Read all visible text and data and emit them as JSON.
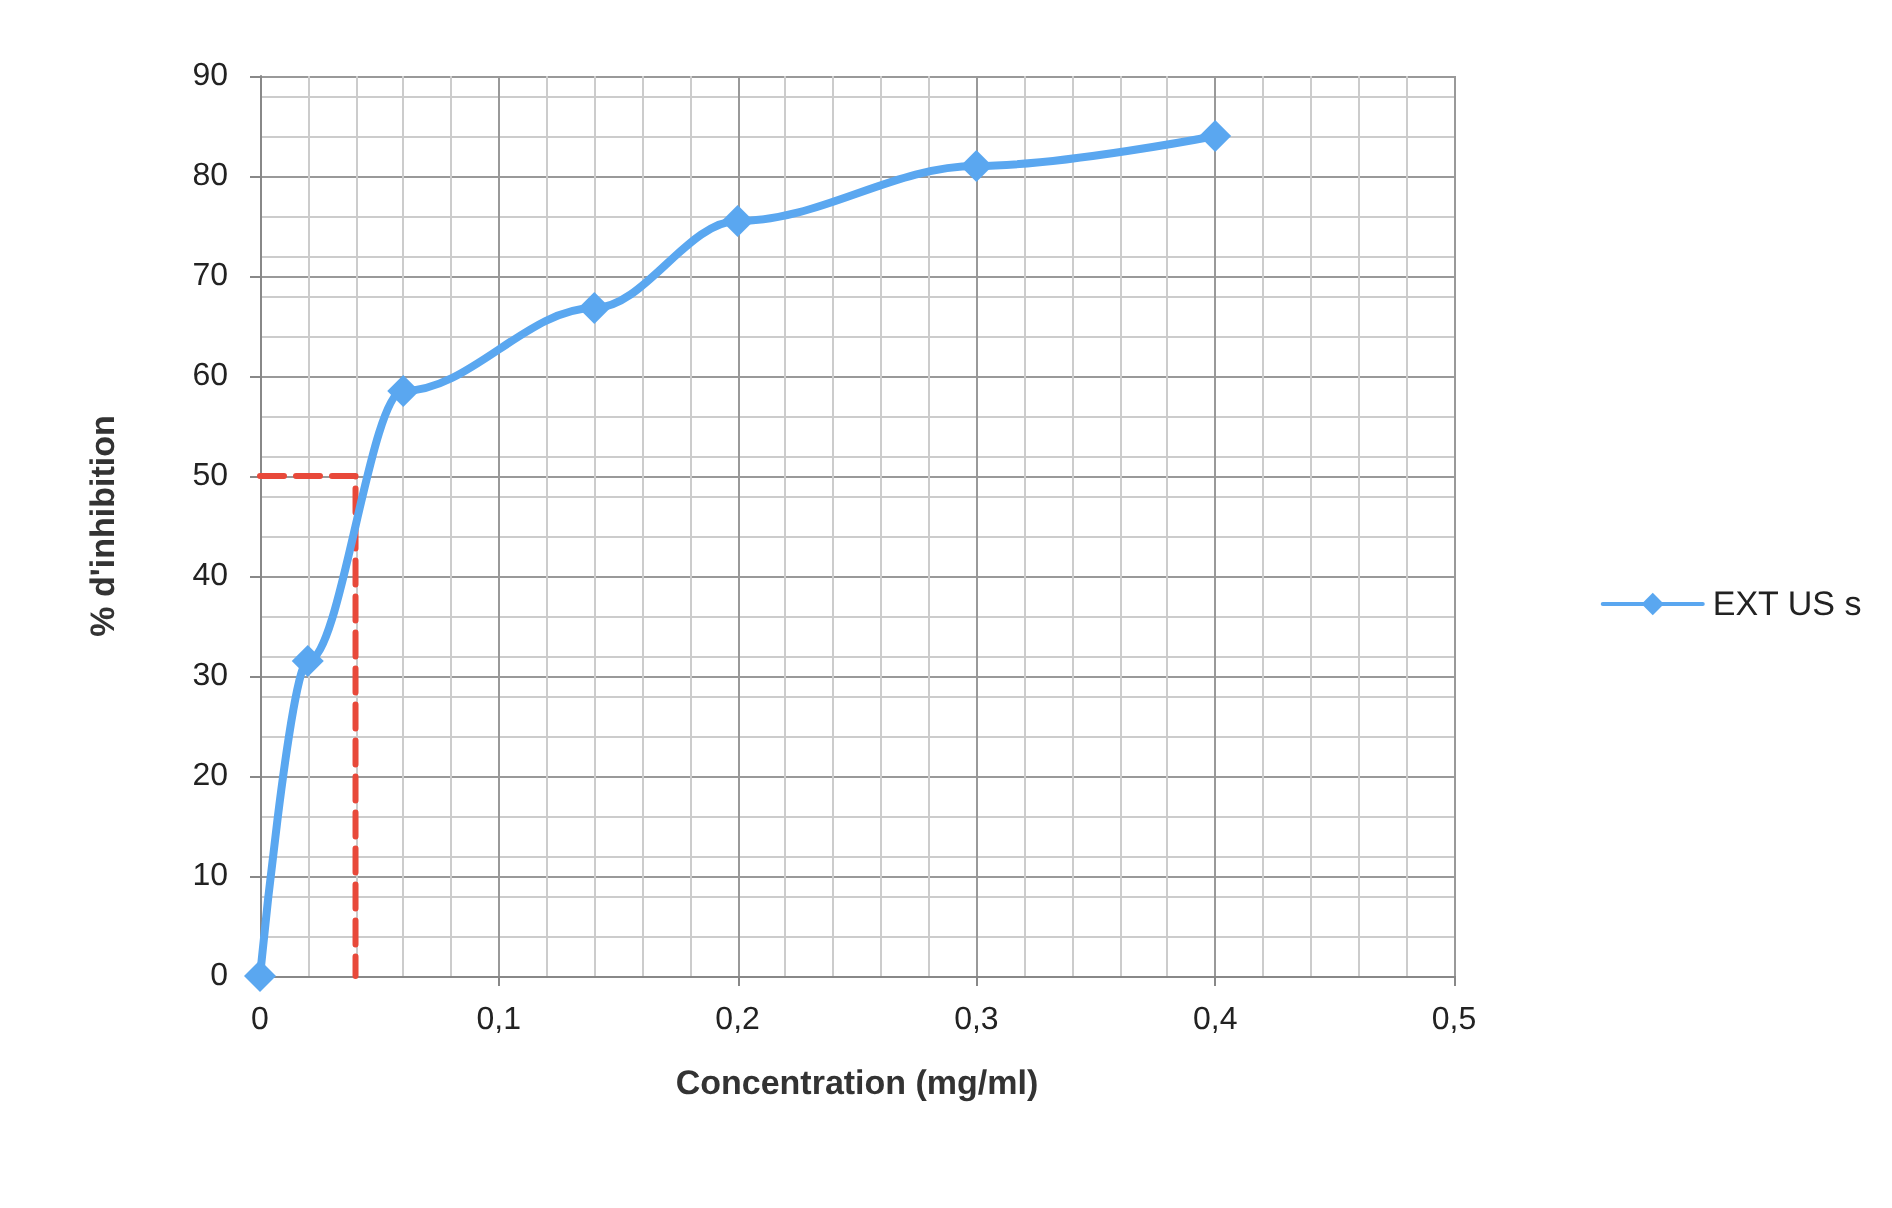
{
  "chart_data": {
    "type": "line",
    "xlabel": "Concentration (mg/ml)",
    "ylabel": "% d'inhibition",
    "xlim": [
      0,
      0.5
    ],
    "xticks": [
      0,
      {
        "value": 0.1,
        "label": "0,1"
      },
      {
        "value": 0.2,
        "label": "0,2"
      },
      {
        "value": 0.3,
        "label": "0,3"
      },
      {
        "value": 0.4,
        "label": "0,4"
      },
      {
        "value": 0.5,
        "label": "0,5"
      }
    ],
    "ylim": [
      0,
      90
    ],
    "yticks": [
      0,
      10,
      20,
      30,
      40,
      50,
      60,
      70,
      80,
      90
    ],
    "series": [
      {
        "name": "EXT US s",
        "color": "#5aa7f0",
        "x": [
          0,
          0.02,
          0.06,
          0.14,
          0.2,
          0.3,
          0.4
        ],
        "values": [
          0,
          31.5,
          58.5,
          66.8,
          75.5,
          81,
          84
        ],
        "marker": "diamond",
        "line_style": "solid"
      },
      {
        "color": "#e8493a",
        "x": [
          0,
          0.04,
          0.04
        ],
        "values": [
          50,
          50,
          0
        ],
        "marker": "none",
        "line_style": "dashed"
      }
    ],
    "grid": true,
    "legend": "right"
  }
}
